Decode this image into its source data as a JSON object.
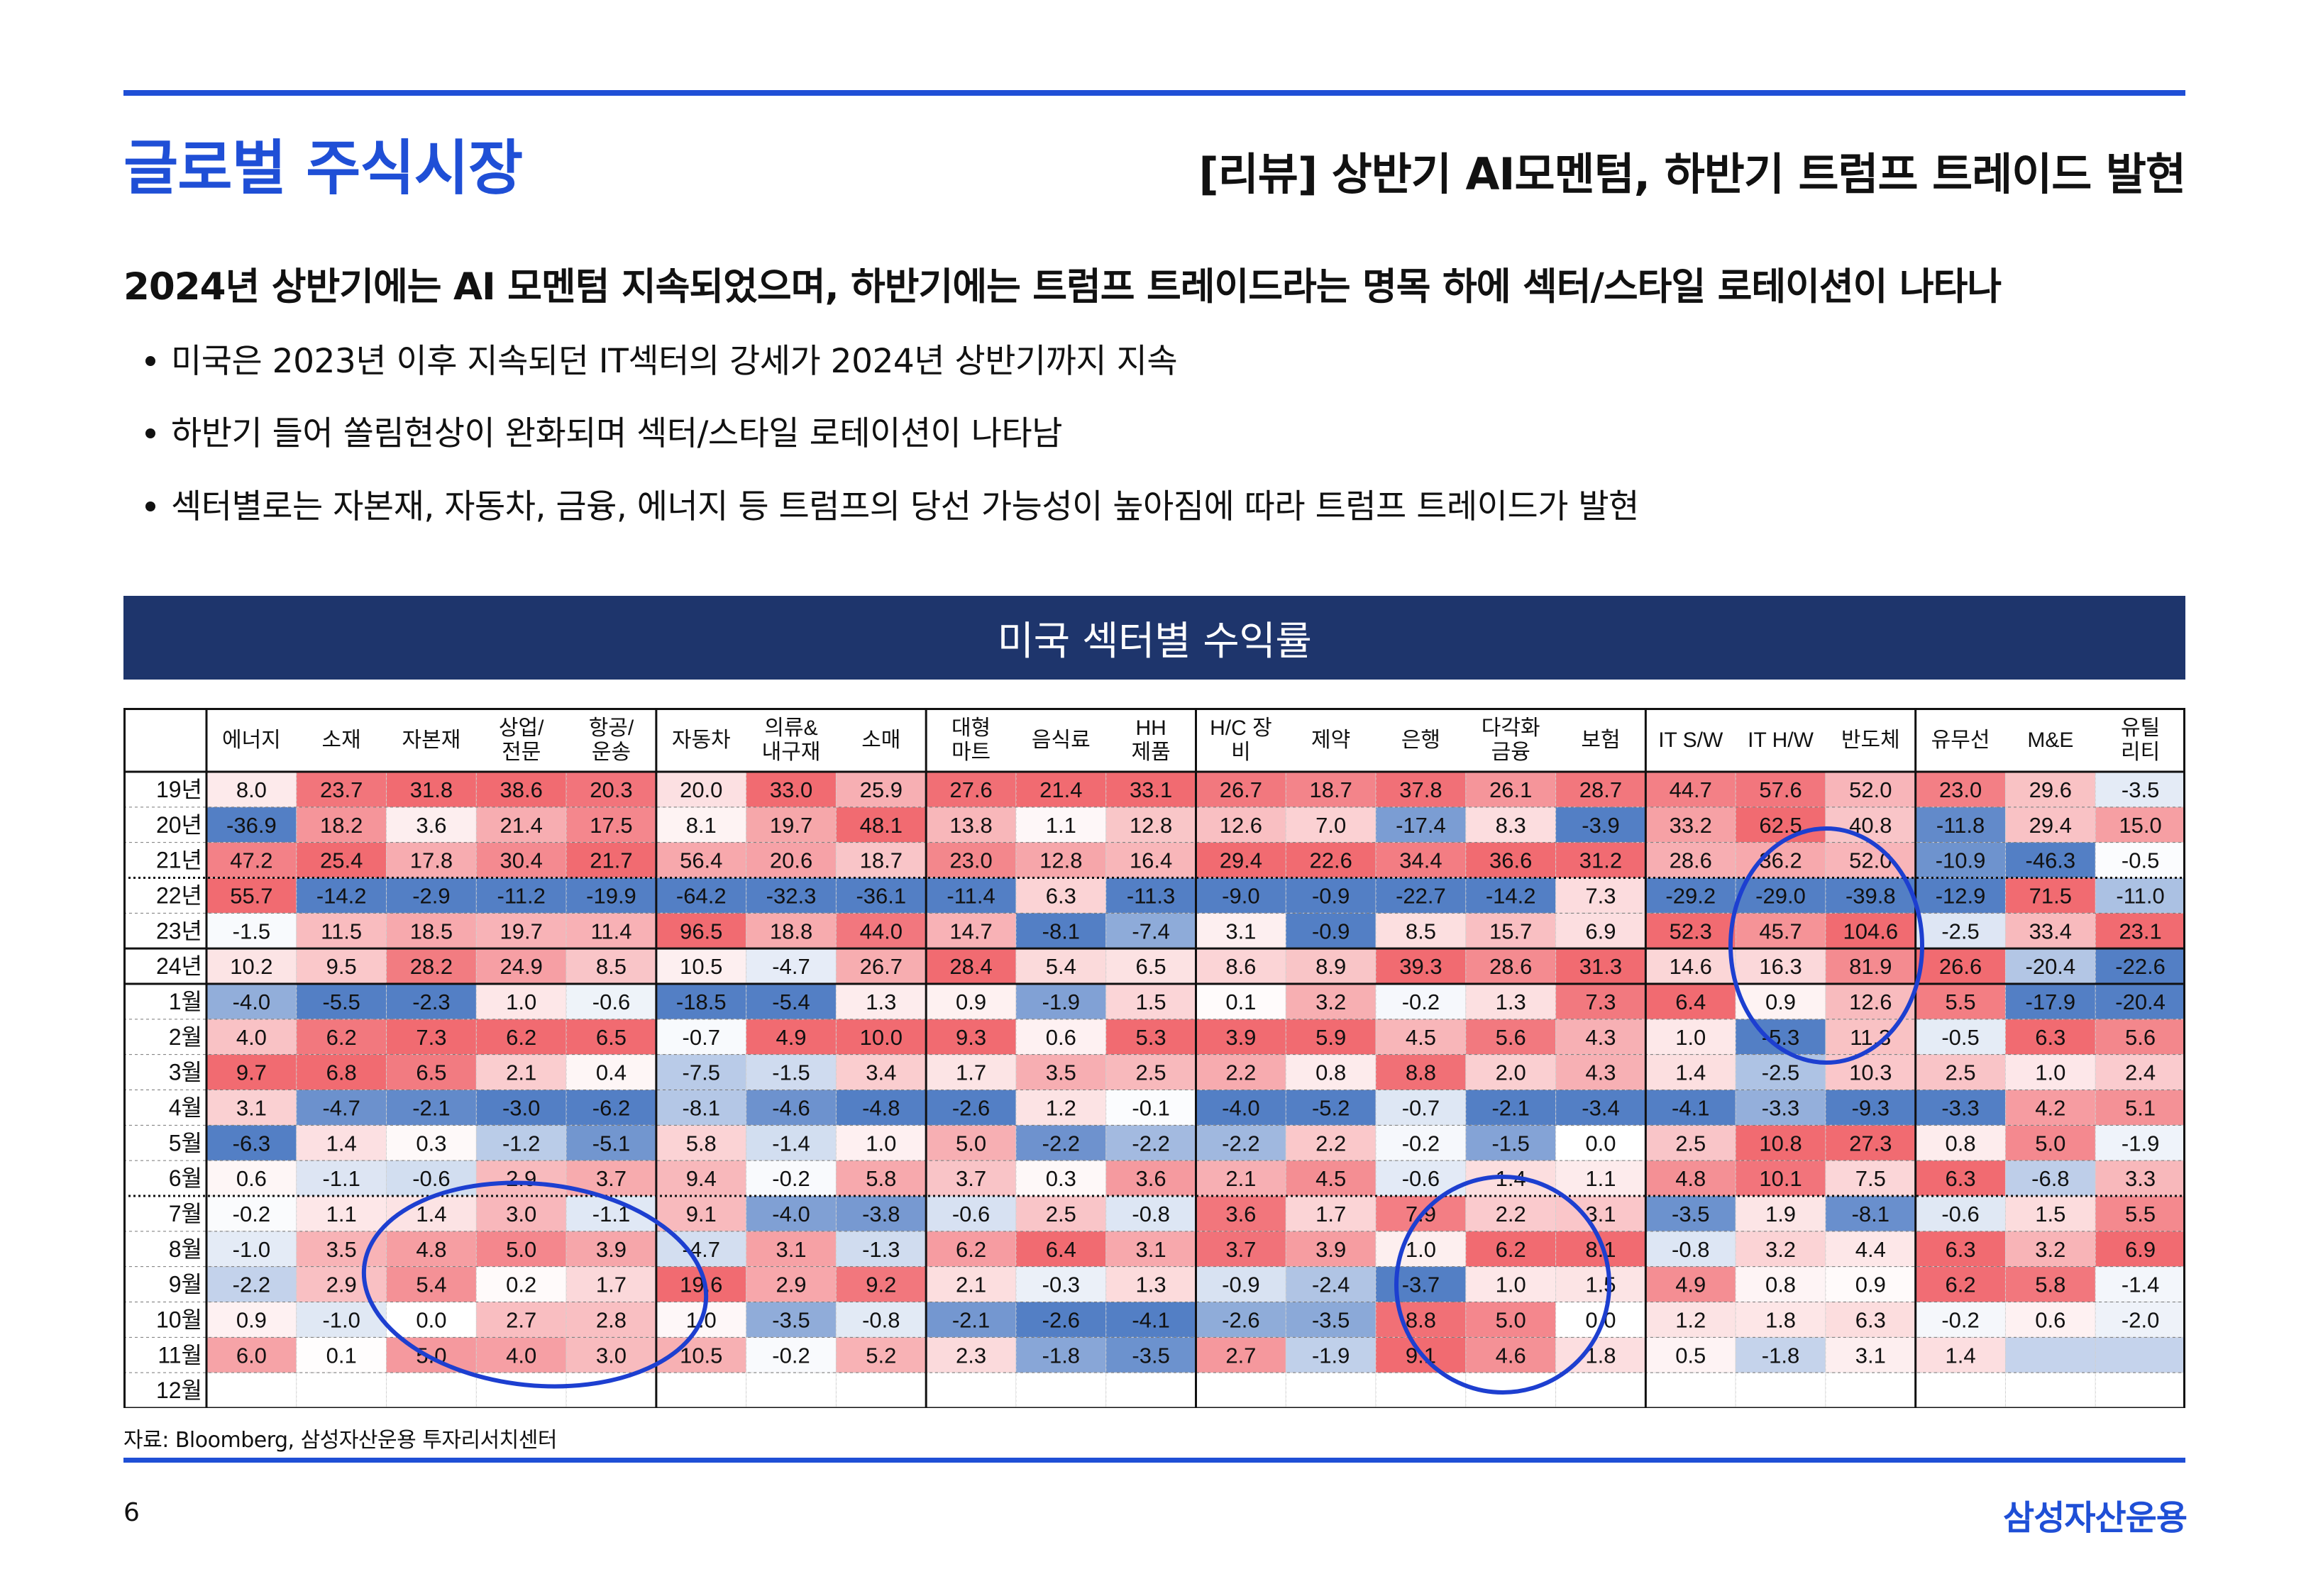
{
  "header": {
    "title": "글로벌 주식시장",
    "subtitle": "[리뷰] 상반기 AI모멘텀, 하반기 트럼프 트레이드 발현"
  },
  "headline": "2024년 상반기에는 AI 모멘텀 지속되었으며, 하반기에는 트럼프 트레이드라는 명목 하에 섹터/스타일 로테이션이 나타나",
  "bullets": [
    "미국은 2023년 이후 지속되던 IT섹터의 강세가 2024년 상반기까지 지속",
    "하반기 들어 쏠림현상이 완화되며 섹터/스타일 로테이션이 나타남",
    "섹터별로는 자본재, 자동차, 금융, 에너지 등 트럼프의 당선 가능성이 높아짐에 따라 트럼프 트레이드가 발현"
  ],
  "table": {
    "title": "미국 섹터별 수익률",
    "columns": [
      [
        "에너지"
      ],
      [
        "소재"
      ],
      [
        "자본재"
      ],
      [
        "상업/",
        "전문"
      ],
      [
        "항공/",
        "운송"
      ],
      [
        "자동차"
      ],
      [
        "의류&",
        "내구재"
      ],
      [
        "소매"
      ],
      [
        "대형",
        "마트"
      ],
      [
        "음식료"
      ],
      [
        "HH",
        "제품"
      ],
      [
        "H/C 장",
        "비"
      ],
      [
        "제약"
      ],
      [
        "은행"
      ],
      [
        "다각화",
        "금융"
      ],
      [
        "보험"
      ],
      [
        "IT S/W"
      ],
      [
        "IT H/W"
      ],
      [
        "반도체"
      ],
      [
        "유무선"
      ],
      [
        "M&E"
      ],
      [
        "유틸",
        "리티"
      ]
    ],
    "rows": [
      {
        "label": "19년",
        "values": [
          "8.0",
          "23.7",
          "31.8",
          "38.6",
          "20.3",
          "20.0",
          "33.0",
          "25.9",
          "27.6",
          "21.4",
          "33.1",
          "26.7",
          "18.7",
          "37.8",
          "26.1",
          "28.7",
          "44.7",
          "57.6",
          "52.0",
          "23.0",
          "29.6",
          "-3.5"
        ]
      },
      {
        "label": "20년",
        "values": [
          "-36.9",
          "18.2",
          "3.6",
          "21.4",
          "17.5",
          "8.1",
          "19.7",
          "48.1",
          "13.8",
          "1.1",
          "12.8",
          "12.6",
          "7.0",
          "-17.4",
          "8.3",
          "-3.9",
          "33.2",
          "62.5",
          "40.8",
          "-11.8",
          "29.4",
          "15.0"
        ]
      },
      {
        "label": "21년",
        "values": [
          "47.2",
          "25.4",
          "17.8",
          "30.4",
          "21.7",
          "56.4",
          "20.6",
          "18.7",
          "23.0",
          "12.8",
          "16.4",
          "29.4",
          "22.6",
          "34.4",
          "36.6",
          "31.2",
          "28.6",
          "36.2",
          "52.0",
          "-10.9",
          "-46.3",
          "-0.5"
        ]
      },
      {
        "label": "22년",
        "values": [
          "55.7",
          "-14.2",
          "-2.9",
          "-11.2",
          "-19.9",
          "-64.2",
          "-32.3",
          "-36.1",
          "-11.4",
          "6.3",
          "-11.3",
          "-9.0",
          "-0.9",
          "-22.7",
          "-14.2",
          "7.3",
          "-29.2",
          "-29.0",
          "-39.8",
          "-12.9",
          "71.5",
          "-11.0"
        ]
      },
      {
        "label": "23년",
        "values": [
          "-1.5",
          "11.5",
          "18.5",
          "19.7",
          "11.4",
          "96.5",
          "18.8",
          "44.0",
          "14.7",
          "-8.1",
          "-7.4",
          "3.1",
          "-0.9",
          "8.5",
          "15.7",
          "6.9",
          "52.3",
          "45.7",
          "104.6",
          "-2.5",
          "33.4",
          "23.1"
        ]
      },
      {
        "label": "24년",
        "values": [
          "10.2",
          "9.5",
          "28.2",
          "24.9",
          "8.5",
          "10.5",
          "-4.7",
          "26.7",
          "28.4",
          "5.4",
          "6.5",
          "8.6",
          "8.9",
          "39.3",
          "28.6",
          "31.3",
          "14.6",
          "16.3",
          "81.9",
          "26.6",
          "-20.4",
          "-22.6"
        ]
      },
      {
        "label": "1월",
        "values": [
          "-4.0",
          "-5.5",
          "-2.3",
          "1.0",
          "-0.6",
          "-18.5",
          "-5.4",
          "1.3",
          "0.9",
          "-1.9",
          "1.5",
          "0.1",
          "3.2",
          "-0.2",
          "1.3",
          "7.3",
          "6.4",
          "0.9",
          "12.6",
          "5.5",
          "-17.9",
          "-20.4"
        ]
      },
      {
        "label": "2월",
        "values": [
          "4.0",
          "6.2",
          "7.3",
          "6.2",
          "6.5",
          "-0.7",
          "4.9",
          "10.0",
          "9.3",
          "0.6",
          "5.3",
          "3.9",
          "5.9",
          "4.5",
          "5.6",
          "4.3",
          "1.0",
          "-5.3",
          "11.3",
          "-0.5",
          "6.3",
          "5.6"
        ]
      },
      {
        "label": "3월",
        "values": [
          "9.7",
          "6.8",
          "6.5",
          "2.1",
          "0.4",
          "-7.5",
          "-1.5",
          "3.4",
          "1.7",
          "3.5",
          "2.5",
          "2.2",
          "0.8",
          "8.8",
          "2.0",
          "4.3",
          "1.4",
          "-2.5",
          "10.3",
          "2.5",
          "1.0",
          "2.4"
        ]
      },
      {
        "label": "4월",
        "values": [
          "3.1",
          "-4.7",
          "-2.1",
          "-3.0",
          "-6.2",
          "-8.1",
          "-4.6",
          "-4.8",
          "-2.6",
          "1.2",
          "-0.1",
          "-4.0",
          "-5.2",
          "-0.7",
          "-2.1",
          "-3.4",
          "-4.1",
          "-3.3",
          "-9.3",
          "-3.3",
          "4.2",
          "5.1"
        ]
      },
      {
        "label": "5월",
        "values": [
          "-6.3",
          "1.4",
          "0.3",
          "-1.2",
          "-5.1",
          "5.8",
          "-1.4",
          "1.0",
          "5.0",
          "-2.2",
          "-2.2",
          "-2.2",
          "2.2",
          "-0.2",
          "-1.5",
          "0.0",
          "2.5",
          "10.8",
          "27.3",
          "0.8",
          "5.0",
          "-1.9"
        ]
      },
      {
        "label": "6월",
        "values": [
          "0.6",
          "-1.1",
          "-0.6",
          "2.9",
          "3.7",
          "9.4",
          "-0.2",
          "5.8",
          "3.7",
          "0.3",
          "3.6",
          "2.1",
          "4.5",
          "-0.6",
          "1.4",
          "1.1",
          "4.8",
          "10.1",
          "7.5",
          "6.3",
          "-6.8",
          "3.3"
        ]
      },
      {
        "label": "7월",
        "values": [
          "-0.2",
          "1.1",
          "1.4",
          "3.0",
          "-1.1",
          "9.1",
          "-4.0",
          "-3.8",
          "-0.6",
          "2.5",
          "-0.8",
          "3.6",
          "1.7",
          "7.9",
          "2.2",
          "3.1",
          "-3.5",
          "1.9",
          "-8.1",
          "-0.6",
          "1.5",
          "5.5"
        ]
      },
      {
        "label": "8월",
        "values": [
          "-1.0",
          "3.5",
          "4.8",
          "5.0",
          "3.9",
          "-4.7",
          "3.1",
          "-1.3",
          "6.2",
          "6.4",
          "3.1",
          "3.7",
          "3.9",
          "1.0",
          "6.2",
          "8.1",
          "-0.8",
          "3.2",
          "4.4",
          "6.3",
          "3.2",
          "6.9"
        ]
      },
      {
        "label": "9월",
        "values": [
          "-2.2",
          "2.9",
          "5.4",
          "0.2",
          "1.7",
          "19.6",
          "2.9",
          "9.2",
          "2.1",
          "-0.3",
          "1.3",
          "-0.9",
          "-2.4",
          "-3.7",
          "1.0",
          "1.5",
          "4.9",
          "0.8",
          "0.9",
          "6.2",
          "5.8",
          "-1.4"
        ]
      },
      {
        "label": "10월",
        "values": [
          "0.9",
          "-1.0",
          "0.0",
          "2.7",
          "2.8",
          "1.0",
          "-3.5",
          "-0.8",
          "-2.1",
          "-2.6",
          "-4.1",
          "-2.6",
          "-3.5",
          "8.8",
          "5.0",
          "0.0",
          "1.2",
          "1.8",
          "6.3",
          "-0.2",
          "0.6",
          "-2.0"
        ]
      },
      {
        "label": "11월",
        "values": [
          "6.0",
          "0.1",
          "5.0",
          "4.0",
          "3.0",
          "10.5",
          "-0.2",
          "5.2",
          "2.3",
          "-1.8",
          "-3.5",
          "2.7",
          "-1.9",
          "9.1",
          "4.6",
          "1.8",
          "0.5",
          "-1.8",
          "3.1",
          "1.4",
          "",
          ""
        ]
      },
      {
        "label": "12월",
        "values": [
          "",
          "",
          "",
          "",
          "",
          "",
          "",
          "",
          "",
          "",
          "",
          "",
          "",
          "",
          "",
          "",
          "",
          "",
          "",
          "",
          "",
          ""
        ]
      }
    ]
  },
  "source": "자료: Bloomberg, 삼성자산운용 투자리서치센터",
  "page_number": "6",
  "company": "삼성자산운용",
  "colors": {
    "accent_blue": "#1f4fd6",
    "banner_navy": "#1e356c",
    "positive_red": "#f0636a",
    "negative_blue": "#4a78c2",
    "highlight_ellipse": "#1d3fd0"
  }
}
